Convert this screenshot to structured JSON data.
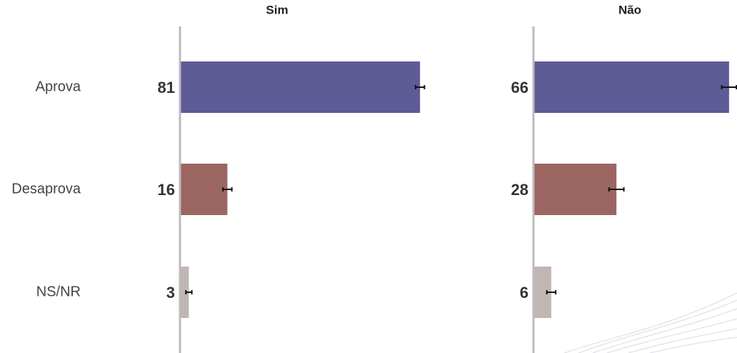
{
  "chart_data": {
    "type": "bar",
    "categories": [
      "Aprova",
      "Desaprova",
      "NS/NR"
    ],
    "colors": [
      "#5f5b96",
      "#9b6662",
      "#c2b6b4"
    ],
    "xlim": [
      0,
      100
    ],
    "panels": [
      {
        "title": "Sim",
        "values": [
          81,
          16,
          3
        ],
        "errors": [
          1.5,
          1.5,
          1
        ]
      },
      {
        "title": "Não",
        "values": [
          66,
          28,
          6
        ],
        "errors": [
          2.5,
          2.5,
          1.5
        ]
      }
    ]
  }
}
